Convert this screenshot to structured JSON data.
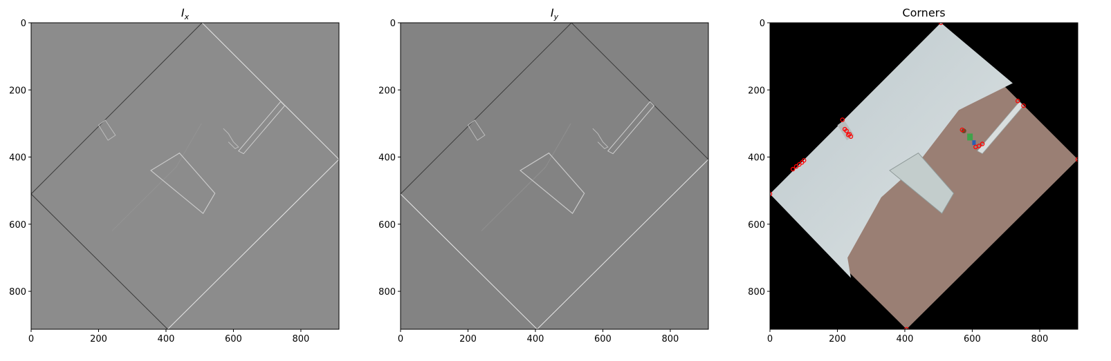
{
  "panels": [
    {
      "key": "ix",
      "title_main": "I",
      "title_sub": "x",
      "type": "gradient",
      "bg": "#8c8c8c"
    },
    {
      "key": "iy",
      "title_main": "I",
      "title_sub": "y",
      "type": "gradient",
      "bg": "#838383"
    },
    {
      "key": "corners",
      "title_main": "Corners",
      "title_sub": "",
      "type": "photo",
      "bg": "#000000"
    }
  ],
  "axis": {
    "x_ticks": [
      "0",
      "200",
      "400",
      "600",
      "800"
    ],
    "y_ticks": [
      "0",
      "200",
      "400",
      "600",
      "800"
    ],
    "x_values": [
      0,
      200,
      400,
      600,
      800
    ],
    "y_values": [
      0,
      200,
      400,
      600,
      800
    ],
    "xlim": [
      0,
      913
    ],
    "ylim": [
      913,
      0
    ]
  },
  "scene": {
    "diamond": {
      "top": [
        507,
        0
      ],
      "right": [
        913,
        407
      ],
      "bottom": [
        405,
        913
      ],
      "left": [
        0,
        510
      ]
    },
    "wall_color": "#c8d0d2",
    "floor_color": "#9a7f74",
    "corner_color": "#ff0000",
    "corners": [
      [
        507,
        0
      ],
      [
        913,
        407
      ],
      [
        405,
        913
      ],
      [
        0,
        510
      ],
      [
        215,
        289
      ],
      [
        222,
        317
      ],
      [
        227,
        322
      ],
      [
        236,
        332
      ],
      [
        240,
        339
      ],
      [
        232,
        334
      ],
      [
        570,
        319
      ],
      [
        610,
        370
      ],
      [
        620,
        367
      ],
      [
        630,
        361
      ],
      [
        735,
        233
      ],
      [
        752,
        247
      ],
      [
        68,
        436
      ],
      [
        78,
        428
      ],
      [
        87,
        422
      ],
      [
        95,
        416
      ],
      [
        101,
        410
      ]
    ]
  }
}
